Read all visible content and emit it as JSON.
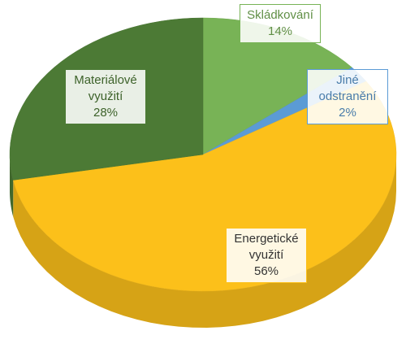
{
  "chart_data": {
    "type": "pie",
    "categories": [
      "Skládkování",
      "Jiné odstranění",
      "Energetické využití",
      "Materiálové využití"
    ],
    "values": [
      14,
      2,
      56,
      28
    ],
    "value_labels": [
      "14%",
      "2%",
      "56%",
      "28%"
    ],
    "colors": [
      "#78b356",
      "#5b9bd5",
      "#fcc01a",
      "#4c7a35"
    ]
  }
}
